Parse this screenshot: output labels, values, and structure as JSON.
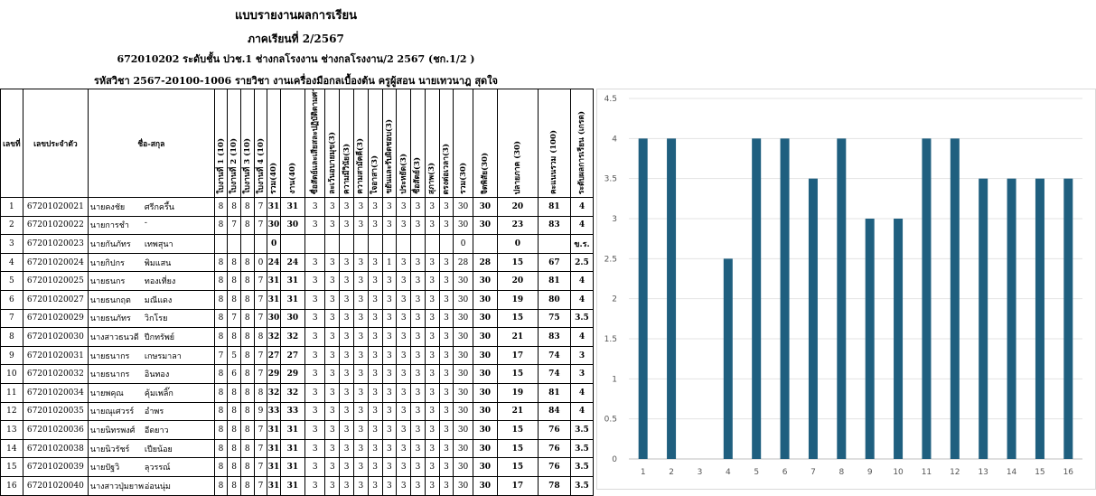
{
  "header": {
    "title": "แบบรายงานผลการเรียน",
    "semester": "ภาคเรียนที่ 2/2567",
    "group_line": "672010202 ระดับชั้น ปวช.1 ช่างกลโรงงาน ช่างกลโรงงาน/2 2567 (ชก.1/2 )",
    "subject_line": "รหัสวิชา 2567-20100-1006    รายวิชา งานเครื่องมือกลเบื้องต้น    ครูผู้สอน นายเทวนาฎ สุดใจ"
  },
  "columns": {
    "no": "เลขที่",
    "id": "เลขประจำตัว",
    "name": "ชื่อ-สกุล",
    "w1": "ใบงานที่ 1 (10)",
    "w2": "ใบงานที่ 2 (10)",
    "w3": "ใบงานที่ 3 (10)",
    "w4": "ใบงานที่ 4 (10)",
    "sum40": "รวม(40)",
    "work40": "งาน(40)",
    "a1": "ซื่อสัตย์และเสียสละปฏิบัติตามศาสนาฯ",
    "a2": "ละเว้นอบายมุข(3)",
    "a3": "ความมีวินัย(3)",
    "a4": "ความสามัคคี(3)",
    "a5": "ใจอาสา(3)",
    "a6": "ขยันและรับผิดชอบ(3)",
    "a7": "ประหยัด(3)",
    "a8": "ซื่อสัตย์(3)",
    "a9": "สุภาพ(3)",
    "a10": "ตรงต่อเวลา(3)",
    "sum30": "รวม(30)",
    "att30": "จิตพิสัย(30)",
    "final30": "ปลายภาค (30)",
    "total100": "คะแนนรวม (100)",
    "grade": "ระดับผลการเรียน (เกรด)"
  },
  "students": [
    {
      "no": "1",
      "id": "67201020021",
      "first": "นายคงชัย",
      "last": "ศรีกครึ้น",
      "w1": "8",
      "w2": "8",
      "w3": "8",
      "w4": "7",
      "sum40": "31",
      "work40": "31",
      "a": [
        "3",
        "3",
        "3",
        "3",
        "3",
        "3",
        "3",
        "3",
        "3",
        "3"
      ],
      "sum30": "30",
      "att30": "30",
      "final30": "20",
      "total": "81",
      "grade": "4"
    },
    {
      "no": "2",
      "id": "67201020022",
      "first": "นายการชำ",
      "last": "-",
      "w1": "8",
      "w2": "7",
      "w3": "8",
      "w4": "7",
      "sum40": "30",
      "work40": "30",
      "a": [
        "3",
        "3",
        "3",
        "3",
        "3",
        "3",
        "3",
        "3",
        "3",
        "3"
      ],
      "sum30": "30",
      "att30": "30",
      "final30": "23",
      "total": "83",
      "grade": "4"
    },
    {
      "no": "3",
      "id": "67201020023",
      "first": "นายกันภัทร",
      "last": "เทพสุนา",
      "w1": "",
      "w2": "",
      "w3": "",
      "w4": "",
      "sum40": "0",
      "work40": "",
      "a": [
        "",
        "",
        "",
        "",
        "",
        "",
        "",
        "",
        "",
        ""
      ],
      "sum30": "0",
      "att30": "",
      "final30": "0",
      "total": "",
      "grade": "ข.ร."
    },
    {
      "no": "4",
      "id": "67201020024",
      "first": "นายกิปกร",
      "last": "พิมแสน",
      "w1": "8",
      "w2": "8",
      "w3": "8",
      "w4": "0",
      "sum40": "24",
      "work40": "24",
      "a": [
        "3",
        "3",
        "3",
        "3",
        "3",
        "1",
        "3",
        "3",
        "3",
        "3"
      ],
      "sum30": "28",
      "att30": "28",
      "final30": "15",
      "total": "67",
      "grade": "2.5"
    },
    {
      "no": "5",
      "id": "67201020025",
      "first": "นายธนกร",
      "last": "ทองเที่ยง",
      "w1": "8",
      "w2": "8",
      "w3": "8",
      "w4": "7",
      "sum40": "31",
      "work40": "31",
      "a": [
        "3",
        "3",
        "3",
        "3",
        "3",
        "3",
        "3",
        "3",
        "3",
        "3"
      ],
      "sum30": "30",
      "att30": "30",
      "final30": "20",
      "total": "81",
      "grade": "4"
    },
    {
      "no": "6",
      "id": "67201020027",
      "first": "นายธนกฤต",
      "last": "มณีแดง",
      "w1": "8",
      "w2": "8",
      "w3": "8",
      "w4": "7",
      "sum40": "31",
      "work40": "31",
      "a": [
        "3",
        "3",
        "3",
        "3",
        "3",
        "3",
        "3",
        "3",
        "3",
        "3"
      ],
      "sum30": "30",
      "att30": "30",
      "final30": "19",
      "total": "80",
      "grade": "4"
    },
    {
      "no": "7",
      "id": "67201020029",
      "first": "นายธนภัทร",
      "last": "วิกโรย",
      "w1": "8",
      "w2": "7",
      "w3": "8",
      "w4": "7",
      "sum40": "30",
      "work40": "30",
      "a": [
        "3",
        "3",
        "3",
        "3",
        "3",
        "3",
        "3",
        "3",
        "3",
        "3"
      ],
      "sum30": "30",
      "att30": "30",
      "final30": "15",
      "total": "75",
      "grade": "3.5"
    },
    {
      "no": "8",
      "id": "67201020030",
      "first": "นางสาวธนวดี",
      "last": "ปีกทรัพย์",
      "w1": "8",
      "w2": "8",
      "w3": "8",
      "w4": "8",
      "sum40": "32",
      "work40": "32",
      "a": [
        "3",
        "3",
        "3",
        "3",
        "3",
        "3",
        "3",
        "3",
        "3",
        "3"
      ],
      "sum30": "30",
      "att30": "30",
      "final30": "21",
      "total": "83",
      "grade": "4"
    },
    {
      "no": "9",
      "id": "67201020031",
      "first": "นายธนากร",
      "last": "เกษรมาลา",
      "w1": "7",
      "w2": "5",
      "w3": "8",
      "w4": "7",
      "sum40": "27",
      "work40": "27",
      "a": [
        "3",
        "3",
        "3",
        "3",
        "3",
        "3",
        "3",
        "3",
        "3",
        "3"
      ],
      "sum30": "30",
      "att30": "30",
      "final30": "17",
      "total": "74",
      "grade": "3"
    },
    {
      "no": "10",
      "id": "67201020032",
      "first": "นายธนากร",
      "last": "อินทอง",
      "w1": "8",
      "w2": "6",
      "w3": "8",
      "w4": "7",
      "sum40": "29",
      "work40": "29",
      "a": [
        "3",
        "3",
        "3",
        "3",
        "3",
        "3",
        "3",
        "3",
        "3",
        "3"
      ],
      "sum30": "30",
      "att30": "30",
      "final30": "15",
      "total": "74",
      "grade": "3"
    },
    {
      "no": "11",
      "id": "67201020034",
      "first": "นายพคุณ",
      "last": "คุ้มเพลิ๊ก",
      "w1": "8",
      "w2": "8",
      "w3": "8",
      "w4": "8",
      "sum40": "32",
      "work40": "32",
      "a": [
        "3",
        "3",
        "3",
        "3",
        "3",
        "3",
        "3",
        "3",
        "3",
        "3"
      ],
      "sum30": "30",
      "att30": "30",
      "final30": "19",
      "total": "81",
      "grade": "4"
    },
    {
      "no": "12",
      "id": "67201020035",
      "first": "นายณุเศวรร์",
      "last": "อำพร",
      "w1": "8",
      "w2": "8",
      "w3": "8",
      "w4": "9",
      "sum40": "33",
      "work40": "33",
      "a": [
        "3",
        "3",
        "3",
        "3",
        "3",
        "3",
        "3",
        "3",
        "3",
        "3"
      ],
      "sum30": "30",
      "att30": "30",
      "final30": "21",
      "total": "84",
      "grade": "4"
    },
    {
      "no": "13",
      "id": "67201020036",
      "first": "นายนิทรพงศ์",
      "last": "อีดยาว",
      "w1": "8",
      "w2": "8",
      "w3": "8",
      "w4": "7",
      "sum40": "31",
      "work40": "31",
      "a": [
        "3",
        "3",
        "3",
        "3",
        "3",
        "3",
        "3",
        "3",
        "3",
        "3"
      ],
      "sum30": "30",
      "att30": "30",
      "final30": "15",
      "total": "76",
      "grade": "3.5"
    },
    {
      "no": "14",
      "id": "67201020038",
      "first": "นายนิวรัชร์",
      "last": "เปียน้อย",
      "w1": "8",
      "w2": "8",
      "w3": "8",
      "w4": "7",
      "sum40": "31",
      "work40": "31",
      "a": [
        "3",
        "3",
        "3",
        "3",
        "3",
        "3",
        "3",
        "3",
        "3",
        "3"
      ],
      "sum30": "30",
      "att30": "30",
      "final30": "15",
      "total": "76",
      "grade": "3.5"
    },
    {
      "no": "15",
      "id": "67201020039",
      "first": "นายปัฐวิ",
      "last": "ลุวรรณ์",
      "w1": "8",
      "w2": "8",
      "w3": "8",
      "w4": "7",
      "sum40": "31",
      "work40": "31",
      "a": [
        "3",
        "3",
        "3",
        "3",
        "3",
        "3",
        "3",
        "3",
        "3",
        "3"
      ],
      "sum30": "30",
      "att30": "30",
      "final30": "15",
      "total": "76",
      "grade": "3.5"
    },
    {
      "no": "16",
      "id": "67201020040",
      "first": "นางสาวปุ่มยาพ",
      "last": "อ่อนนุ่ม",
      "w1": "8",
      "w2": "8",
      "w3": "8",
      "w4": "7",
      "sum40": "31",
      "work40": "31",
      "a": [
        "3",
        "3",
        "3",
        "3",
        "3",
        "3",
        "3",
        "3",
        "3",
        "3"
      ],
      "sum30": "30",
      "att30": "30",
      "final30": "17",
      "total": "78",
      "grade": "3.5"
    }
  ],
  "chart_data": {
    "type": "bar",
    "categories": [
      "1",
      "2",
      "3",
      "4",
      "5",
      "6",
      "7",
      "8",
      "9",
      "10",
      "11",
      "12",
      "13",
      "14",
      "15",
      "16"
    ],
    "values": [
      4,
      4,
      0,
      2.5,
      4,
      4,
      3.5,
      4,
      3,
      3,
      4,
      4,
      3.5,
      3.5,
      3.5,
      3.5
    ],
    "yticks": [
      "0",
      "0.5",
      "1",
      "1.5",
      "2",
      "2.5",
      "3",
      "3.5",
      "4",
      "4.5"
    ],
    "ylim": [
      0,
      4.5
    ],
    "bar_color": "#1f5f7f",
    "grid": true,
    "title": "",
    "xlabel": "",
    "ylabel": ""
  }
}
